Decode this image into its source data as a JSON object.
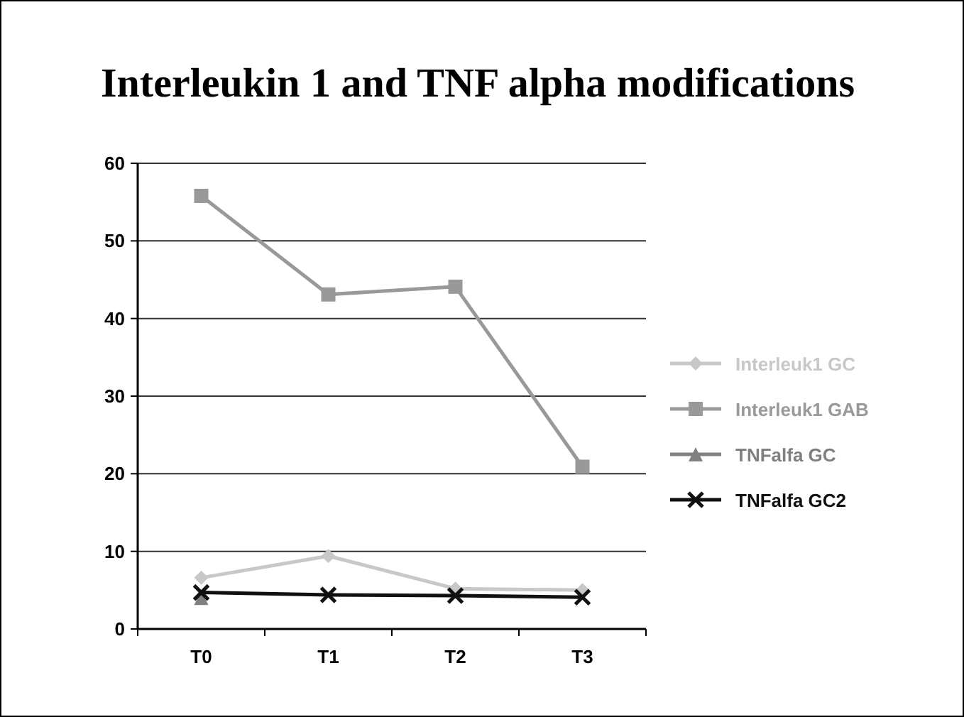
{
  "chart_data": {
    "type": "line",
    "title": "Interleukin 1 and TNF alpha modifications",
    "categories": [
      "T0",
      "T1",
      "T2",
      "T3"
    ],
    "series": [
      {
        "name": "Interleuk1 GC",
        "color": "#c8c8c8",
        "marker": "diamond",
        "values": [
          6.6,
          9.4,
          5.2,
          5.0
        ]
      },
      {
        "name": "Interleuk1 GAB",
        "color": "#999999",
        "marker": "square",
        "values": [
          55.8,
          43.1,
          44.1,
          20.9
        ]
      },
      {
        "name": "TNFalfa GC",
        "color": "#808080",
        "marker": "triangle",
        "values": [
          4.0,
          null,
          null,
          null
        ]
      },
      {
        "name": "TNFalfa GC2",
        "color": "#111111",
        "marker": "cross",
        "values": [
          4.7,
          4.4,
          4.3,
          4.1
        ]
      }
    ],
    "ylim": [
      0,
      60
    ],
    "yticks": [
      0,
      10,
      20,
      30,
      40,
      50,
      60
    ],
    "grid": "y",
    "legend": "right",
    "line_style": "solid"
  }
}
